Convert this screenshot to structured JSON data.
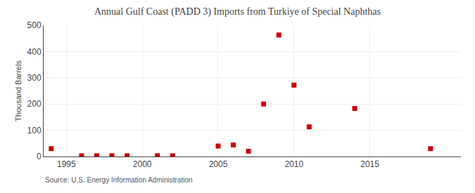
{
  "chart_data": {
    "type": "scatter",
    "title": "Annual Gulf Coast (PADD 3) Imports from Turkiye of Special Naphthas",
    "ylabel": "Thousand Barrels",
    "annotations": [
      "Source: U.S. Energy Information Administration"
    ],
    "x": [
      1994,
      1996,
      1997,
      1998,
      1999,
      2001,
      2002,
      2005,
      2006,
      2007,
      2008,
      2009,
      2010,
      2011,
      2014,
      2019
    ],
    "values": [
      30,
      3,
      3,
      3,
      3,
      3,
      3,
      40,
      44,
      20,
      200,
      463,
      272,
      113,
      183,
      30
    ],
    "color": "#cc0000",
    "marker": "square",
    "xlim": [
      1993.5,
      2021
    ],
    "ylim": [
      0,
      500
    ],
    "xticks": [
      1995,
      2000,
      2005,
      2010,
      2015
    ],
    "yticks": [
      0,
      100,
      200,
      300,
      400,
      500
    ],
    "grid": true
  }
}
